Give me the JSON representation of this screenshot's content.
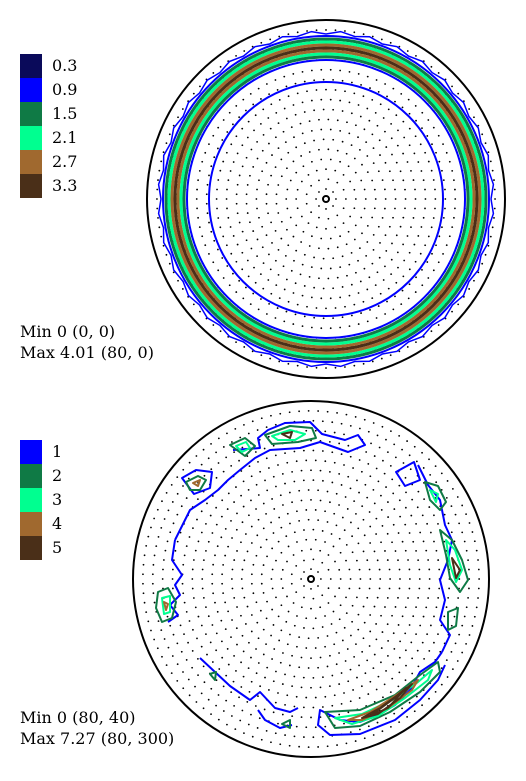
{
  "figures": [
    {
      "legend": [
        {
          "label": "0.3",
          "color": "#0a0a5a"
        },
        {
          "label": "0.9",
          "color": "#0000ff"
        },
        {
          "label": "1.5",
          "color": "#0f7a45"
        },
        {
          "label": "2.1",
          "color": "#00ff90"
        },
        {
          "label": "2.7",
          "color": "#a0692f"
        },
        {
          "label": "3.3",
          "color": "#4a2f18"
        }
      ],
      "min_text": "Min 0 (0, 0)",
      "max_text": "Max 4.01 (80, 0)"
    },
    {
      "legend": [
        {
          "label": "1",
          "color": "#0000ff"
        },
        {
          "label": "2",
          "color": "#0f7a45"
        },
        {
          "label": "3",
          "color": "#00ff90"
        },
        {
          "label": "4",
          "color": "#a0692f"
        },
        {
          "label": "5",
          "color": "#4a2f18"
        }
      ],
      "min_text": "Min 0 (80, 40)",
      "max_text": "Max 7.27 (80, 300)"
    }
  ],
  "chart_data": [
    {
      "type": "heatmap",
      "projection": "pole figure",
      "contour_levels": [
        0.3,
        0.9,
        1.5,
        2.1,
        2.7,
        3.3
      ],
      "min": {
        "value": 0,
        "at": [
          0,
          0
        ]
      },
      "max": {
        "value": 4.01,
        "at": [
          80,
          0
        ]
      },
      "pattern": "concentric rings near the rim"
    },
    {
      "type": "heatmap",
      "projection": "pole figure",
      "contour_levels": [
        1,
        2,
        3,
        4,
        5
      ],
      "min": {
        "value": 0,
        "at": [
          80,
          40
        ]
      },
      "max": {
        "value": 7.27,
        "at": [
          80,
          300
        ]
      },
      "pattern": "discrete peaks along the rim"
    }
  ]
}
